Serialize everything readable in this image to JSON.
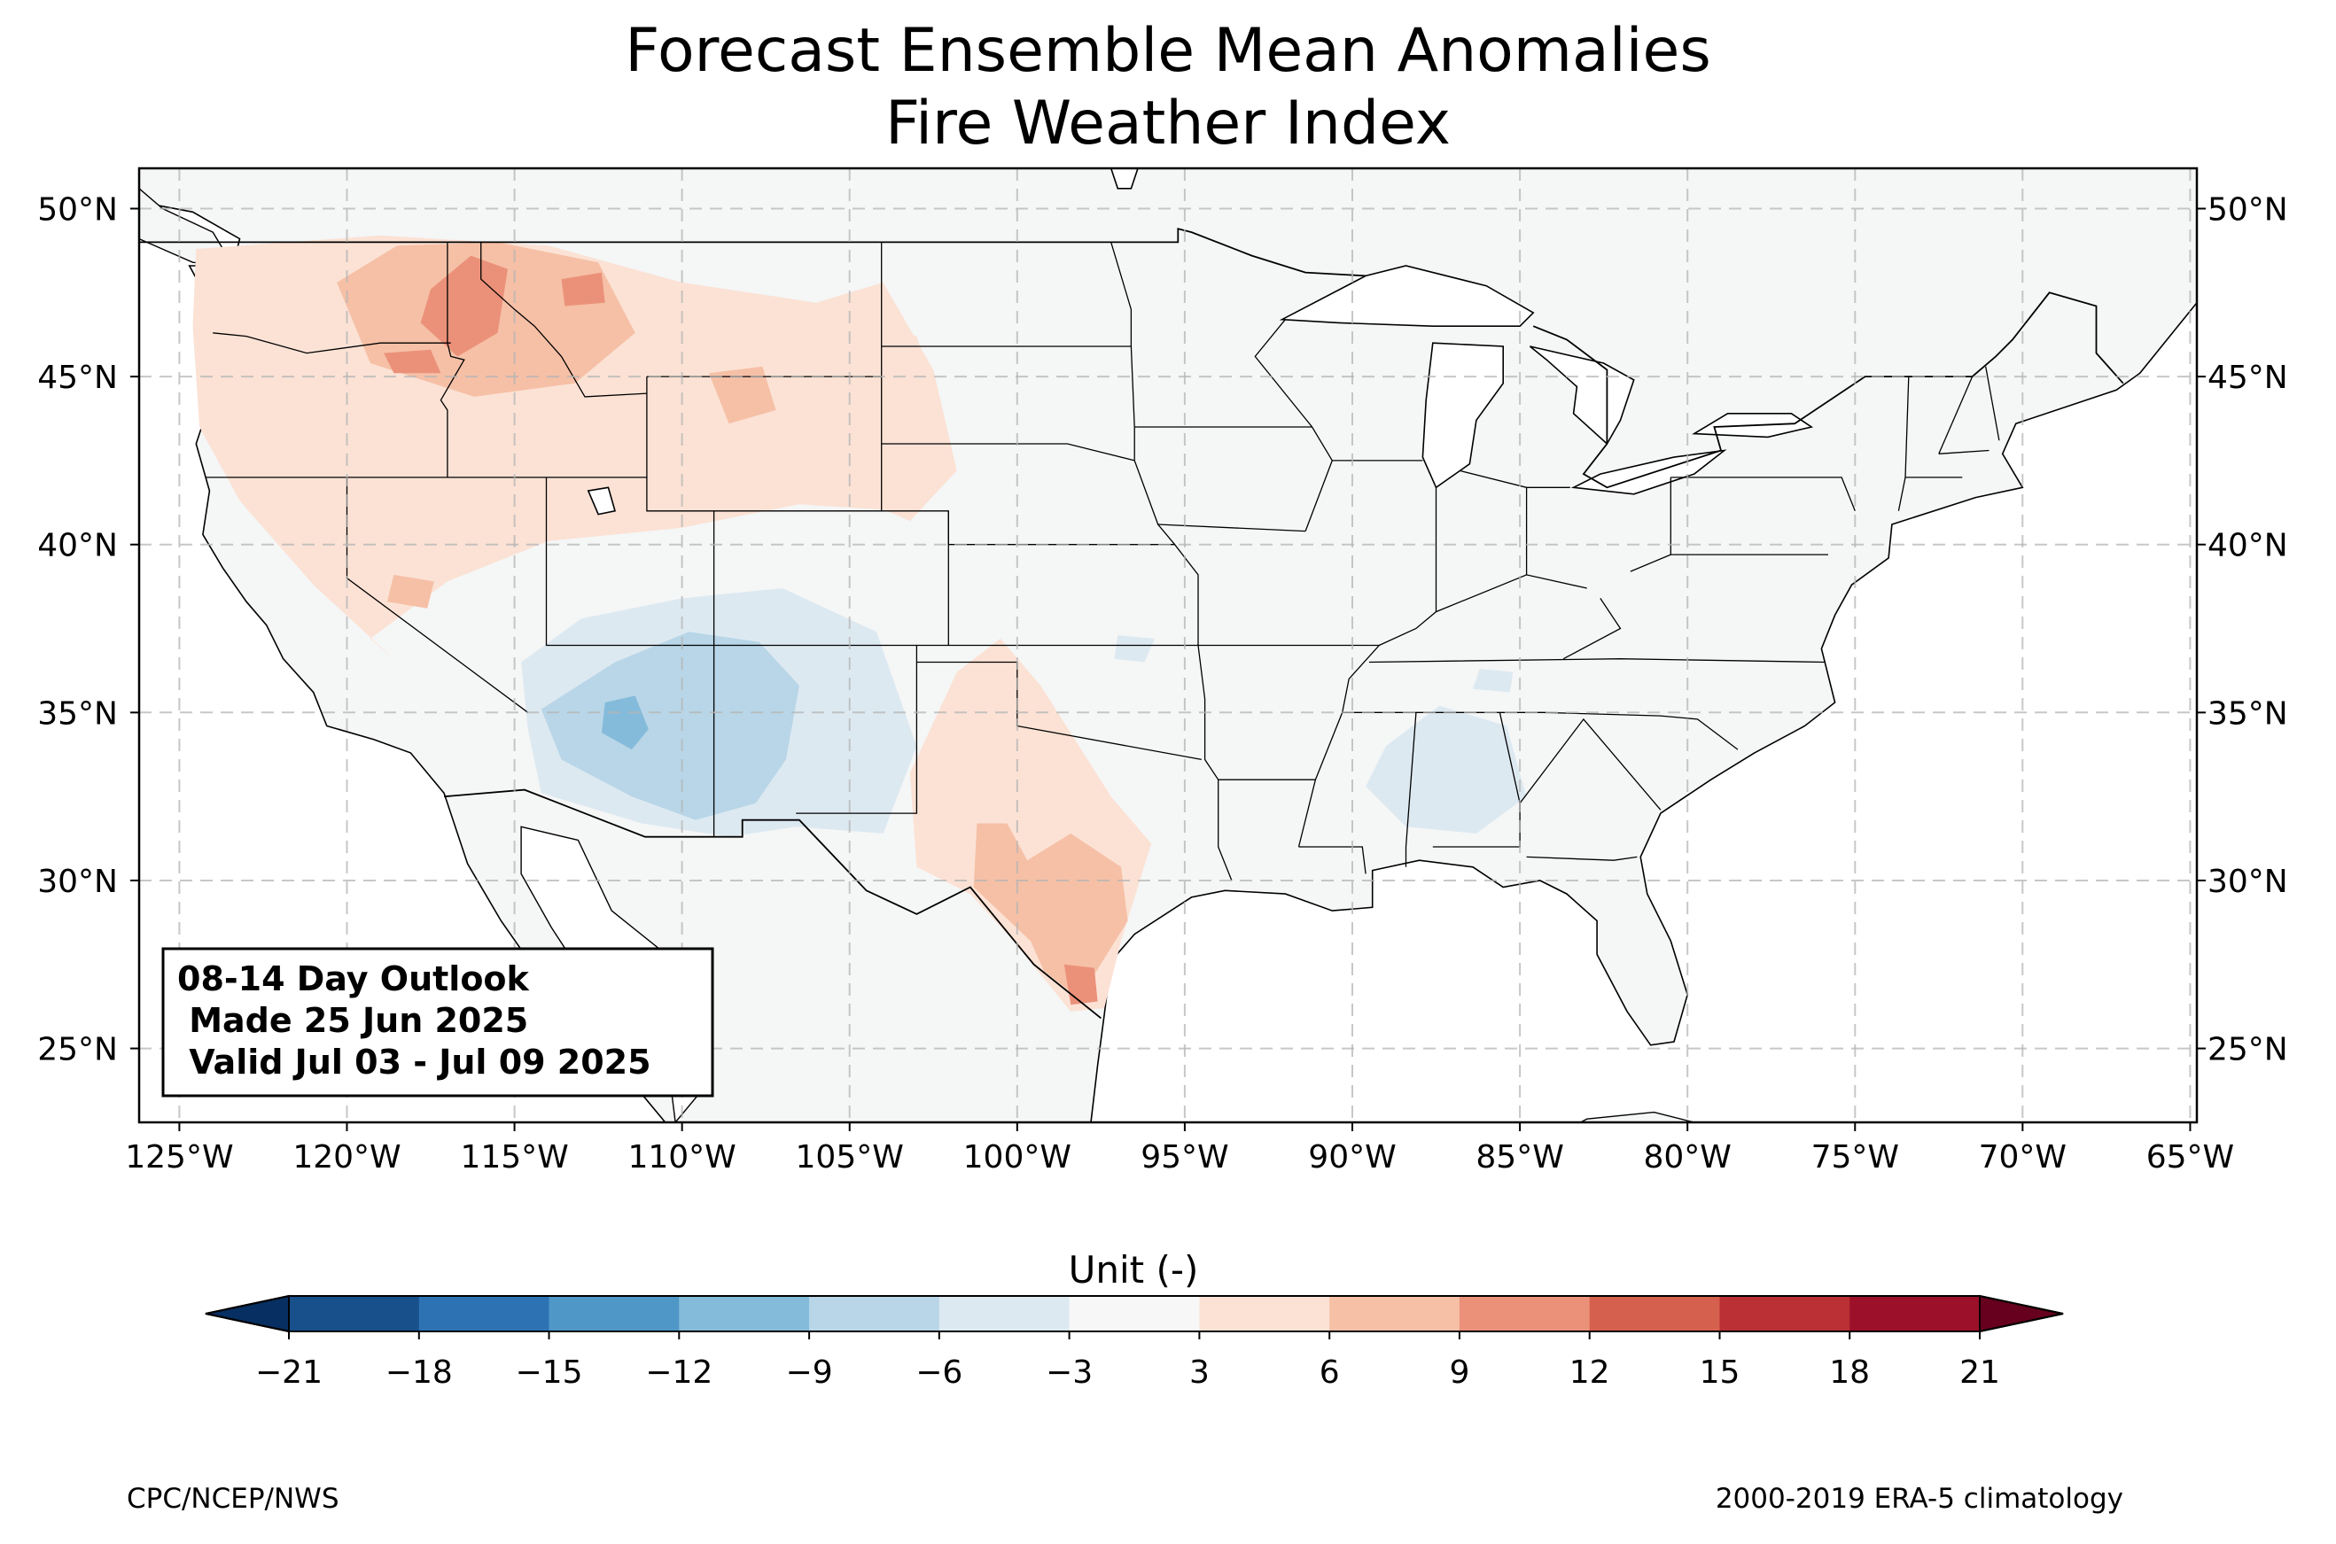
{
  "title": {
    "line1": "Forecast Ensemble Mean Anomalies",
    "line2": "Fire Weather Index"
  },
  "map": {
    "lon_range": [
      -126.2,
      -64.8
    ],
    "lat_range": [
      22.8,
      51.2
    ],
    "lon_ticks": [
      -125,
      -120,
      -115,
      -110,
      -105,
      -100,
      -95,
      -90,
      -85,
      -80,
      -75,
      -70,
      -65
    ],
    "lon_tick_labels": [
      "125°W",
      "120°W",
      "115°W",
      "110°W",
      "105°W",
      "100°W",
      "95°W",
      "90°W",
      "85°W",
      "80°W",
      "75°W",
      "70°W",
      "65°W"
    ],
    "lat_ticks": [
      25,
      30,
      35,
      40,
      45,
      50
    ],
    "lat_tick_labels": [
      "25°N",
      "30°N",
      "35°N",
      "40°N",
      "45°N",
      "50°N"
    ],
    "grid": true,
    "land_color": "#f5f6f6",
    "anomaly_regions": [
      {
        "name": "northwest-light",
        "value": 4,
        "polygon": [
          [
            -124.5,
            48.8
          ],
          [
            -119,
            49.2
          ],
          [
            -114,
            48.9
          ],
          [
            -110,
            47.8
          ],
          [
            -106,
            47.2
          ],
          [
            -103,
            46.2
          ],
          [
            -102,
            43
          ],
          [
            -103.5,
            41
          ],
          [
            -106.5,
            41.2
          ],
          [
            -110,
            40.5
          ],
          [
            -114,
            40.1
          ],
          [
            -117,
            38.9
          ],
          [
            -119.3,
            37.2
          ],
          [
            -118.5,
            36.5
          ],
          [
            -121,
            38.8
          ],
          [
            -123.2,
            41.3
          ],
          [
            -124.4,
            43.5
          ],
          [
            -124.6,
            46.5
          ]
        ]
      },
      {
        "name": "plains-light",
        "value": 4,
        "polygon": [
          [
            -106,
            47.2
          ],
          [
            -104,
            47.8
          ],
          [
            -102.5,
            45.2
          ],
          [
            -101.8,
            42.2
          ],
          [
            -103.2,
            40.7
          ],
          [
            -105,
            41.5
          ],
          [
            -106,
            44
          ]
        ]
      },
      {
        "name": "idaho-montana-mid",
        "value": 7,
        "polygon": [
          [
            -120.3,
            47.8
          ],
          [
            -118.5,
            48.9
          ],
          [
            -115.5,
            49
          ],
          [
            -112.5,
            48.4
          ],
          [
            -111.4,
            46.3
          ],
          [
            -113.2,
            44.8
          ],
          [
            -116.2,
            44.4
          ],
          [
            -119.3,
            45.4
          ]
        ]
      },
      {
        "name": "idaho-core",
        "value": 10,
        "polygon": [
          [
            -117.5,
            47.6
          ],
          [
            -116.3,
            48.6
          ],
          [
            -115.2,
            48.2
          ],
          [
            -115.5,
            46.3
          ],
          [
            -116.7,
            45.6
          ],
          [
            -117.8,
            46.6
          ]
        ]
      },
      {
        "name": "montana-spot",
        "value": 10,
        "polygon": [
          [
            -113.6,
            47.9
          ],
          [
            -112.4,
            48.1
          ],
          [
            -112.3,
            47.2
          ],
          [
            -113.5,
            47.1
          ]
        ]
      },
      {
        "name": "oregon-spot",
        "value": 10,
        "polygon": [
          [
            -118.9,
            45.7
          ],
          [
            -117.5,
            45.8
          ],
          [
            -117.2,
            45.1
          ],
          [
            -118.6,
            45.1
          ]
        ]
      },
      {
        "name": "wyoming-spot",
        "value": 7,
        "polygon": [
          [
            -109.2,
            45.1
          ],
          [
            -107.6,
            45.3
          ],
          [
            -107.2,
            44
          ],
          [
            -108.6,
            43.6
          ]
        ]
      },
      {
        "name": "nevada-spot",
        "value": 7,
        "polygon": [
          [
            -118.6,
            39.1
          ],
          [
            -117.4,
            38.9
          ],
          [
            -117.6,
            38.1
          ],
          [
            -118.8,
            38.3
          ]
        ]
      },
      {
        "name": "texas-light",
        "value": 4,
        "polygon": [
          [
            -101.8,
            36.2
          ],
          [
            -100.5,
            37.2
          ],
          [
            -99.3,
            35.8
          ],
          [
            -97.2,
            32.5
          ],
          [
            -96,
            31.1
          ],
          [
            -96.9,
            28.2
          ],
          [
            -97.4,
            26.2
          ],
          [
            -98.4,
            26.1
          ],
          [
            -100.2,
            28.3
          ],
          [
            -101.4,
            29.6
          ],
          [
            -103,
            30.4
          ],
          [
            -103.2,
            33.2
          ]
        ]
      },
      {
        "name": "texas-mid",
        "value": 7,
        "polygon": [
          [
            -101.2,
            31.7
          ],
          [
            -100.3,
            31.7
          ],
          [
            -99.7,
            30.6
          ],
          [
            -98.4,
            31.4
          ],
          [
            -96.9,
            30.4
          ],
          [
            -96.7,
            28.8
          ],
          [
            -97.7,
            27.2
          ],
          [
            -98.3,
            26.6
          ],
          [
            -99.2,
            27.3
          ],
          [
            -99.6,
            28.2
          ],
          [
            -101.3,
            29.8
          ]
        ]
      },
      {
        "name": "south-texas-core",
        "value": 10,
        "polygon": [
          [
            -98.6,
            27.5
          ],
          [
            -97.7,
            27.4
          ],
          [
            -97.6,
            26.4
          ],
          [
            -98.4,
            26.3
          ]
        ]
      },
      {
        "name": "southwest-light",
        "value": -4,
        "polygon": [
          [
            -114.8,
            36.5
          ],
          [
            -113,
            37.8
          ],
          [
            -110,
            38.4
          ],
          [
            -107,
            38.7
          ],
          [
            -104.2,
            37.4
          ],
          [
            -103,
            34
          ],
          [
            -104,
            31.4
          ],
          [
            -106.6,
            31.6
          ],
          [
            -108.6,
            31.3
          ],
          [
            -111.2,
            31.7
          ],
          [
            -114.2,
            32.6
          ],
          [
            -114.6,
            34.5
          ]
        ]
      },
      {
        "name": "southwest-mid",
        "value": -7,
        "polygon": [
          [
            -114.2,
            35.1
          ],
          [
            -112,
            36.5
          ],
          [
            -109.8,
            37.4
          ],
          [
            -107.7,
            37.1
          ],
          [
            -106.5,
            35.8
          ],
          [
            -106.9,
            33.6
          ],
          [
            -107.8,
            32.3
          ],
          [
            -109.6,
            31.8
          ],
          [
            -111.5,
            32.5
          ],
          [
            -113.6,
            33.6
          ]
        ]
      },
      {
        "name": "arizona-core",
        "value": -10,
        "polygon": [
          [
            -112.3,
            35.3
          ],
          [
            -111.4,
            35.5
          ],
          [
            -111,
            34.5
          ],
          [
            -111.5,
            33.9
          ],
          [
            -112.4,
            34.4
          ]
        ]
      },
      {
        "name": "southeast-light",
        "value": -4,
        "polygon": [
          [
            -89,
            34
          ],
          [
            -87.4,
            35.2
          ],
          [
            -85.4,
            34.6
          ],
          [
            -84.8,
            32.5
          ],
          [
            -86.3,
            31.4
          ],
          [
            -88.4,
            31.6
          ],
          [
            -89.6,
            32.8
          ]
        ]
      },
      {
        "name": "tennessee-spot",
        "value": -4,
        "polygon": [
          [
            -86.2,
            36.3
          ],
          [
            -85.2,
            36.2
          ],
          [
            -85.3,
            35.6
          ],
          [
            -86.4,
            35.7
          ]
        ]
      },
      {
        "name": "kansas-spot",
        "value": -4,
        "polygon": [
          [
            -97,
            37.3
          ],
          [
            -95.9,
            37.2
          ],
          [
            -96.2,
            36.5
          ],
          [
            -97.1,
            36.6
          ]
        ]
      }
    ]
  },
  "annotation": {
    "line1": "08-14 Day Outlook",
    "line2": " Made 25 Jun 2025",
    "line3": " Valid Jul 03 - Jul 09 2025"
  },
  "colorbar": {
    "label": "Unit (-)",
    "levels": [
      -21,
      -18,
      -15,
      -12,
      -9,
      -6,
      -3,
      3,
      6,
      9,
      12,
      15,
      18,
      21
    ],
    "tick_labels": [
      "−21",
      "−18",
      "−15",
      "−12",
      "−9",
      "−6",
      "−3",
      "3",
      "6",
      "9",
      "12",
      "15",
      "18",
      "21"
    ],
    "colors": [
      "#17508b",
      "#2d73b3",
      "#4f97c7",
      "#85bbda",
      "#b8d6e8",
      "#dde9f1",
      "#f7f7f7",
      "#fbe2d5",
      "#f6c0a6",
      "#eb917a",
      "#d6604e",
      "#bb3034",
      "#9c1029"
    ],
    "under_color": "#072f61",
    "over_color": "#66001e"
  },
  "footer": {
    "left": "CPC/NCEP/NWS",
    "right": "2000-2019 ERA-5 climatology"
  }
}
